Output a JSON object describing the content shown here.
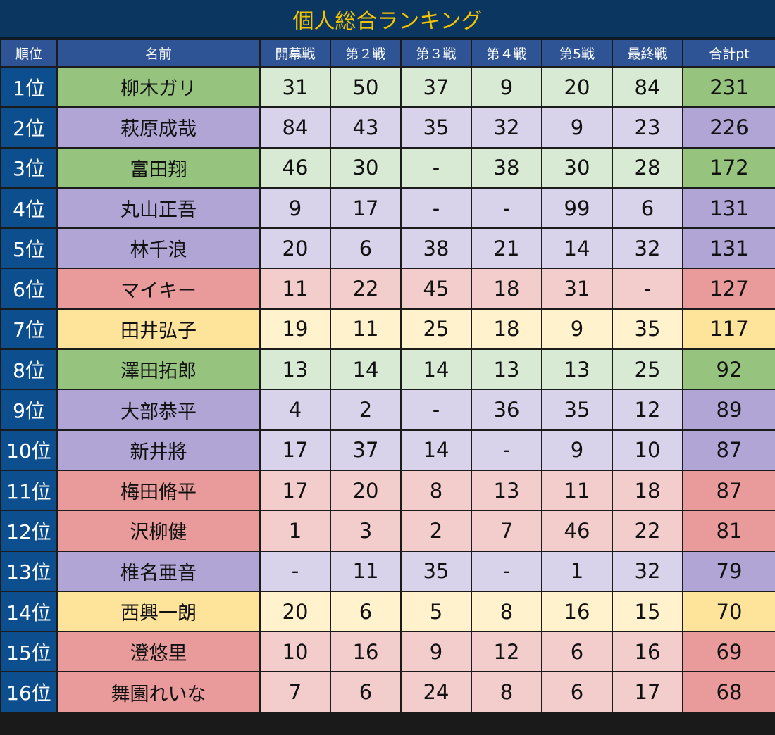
{
  "title": "個人総合ランキング",
  "headers": [
    "順位",
    "名前",
    "開幕戦",
    "第２戦",
    "第３戦",
    "第４戦",
    "第5戦",
    "最終戦",
    "合計pt"
  ],
  "colors": {
    "g": "#96c47e",
    "p": "#b1a5d6",
    "r": "#e99a9a",
    "y": "#fde49a",
    "rank": "#0c4e8e",
    "header": "#2f5496",
    "title_bg": "#0a365f",
    "title_text": "#f5c400"
  },
  "rows": [
    {
      "rank": "1位",
      "name": "柳木ガリ",
      "group": "g",
      "scores": [
        "31",
        "50",
        "37",
        "9",
        "20",
        "84"
      ],
      "total": "231"
    },
    {
      "rank": "2位",
      "name": "萩原成哉",
      "group": "p",
      "scores": [
        "84",
        "43",
        "35",
        "32",
        "9",
        "23"
      ],
      "total": "226"
    },
    {
      "rank": "3位",
      "name": "富田翔",
      "group": "g",
      "scores": [
        "46",
        "30",
        "-",
        "38",
        "30",
        "28"
      ],
      "total": "172"
    },
    {
      "rank": "4位",
      "name": "丸山正吾",
      "group": "p",
      "scores": [
        "9",
        "17",
        "-",
        "-",
        "99",
        "6"
      ],
      "total": "131"
    },
    {
      "rank": "5位",
      "name": "林千浪",
      "group": "p",
      "scores": [
        "20",
        "6",
        "38",
        "21",
        "14",
        "32"
      ],
      "total": "131"
    },
    {
      "rank": "6位",
      "name": "マイキー",
      "group": "r",
      "scores": [
        "11",
        "22",
        "45",
        "18",
        "31",
        "-"
      ],
      "total": "127"
    },
    {
      "rank": "7位",
      "name": "田井弘子",
      "group": "y",
      "scores": [
        "19",
        "11",
        "25",
        "18",
        "9",
        "35"
      ],
      "total": "117"
    },
    {
      "rank": "8位",
      "name": "澤田拓郎",
      "group": "g",
      "scores": [
        "13",
        "14",
        "14",
        "13",
        "13",
        "25"
      ],
      "total": "92"
    },
    {
      "rank": "9位",
      "name": "大部恭平",
      "group": "p",
      "scores": [
        "4",
        "2",
        "-",
        "36",
        "35",
        "12"
      ],
      "total": "89"
    },
    {
      "rank": "10位",
      "name": "新井將",
      "group": "p",
      "scores": [
        "17",
        "37",
        "14",
        "-",
        "9",
        "10"
      ],
      "total": "87"
    },
    {
      "rank": "11位",
      "name": "梅田脩平",
      "group": "r",
      "scores": [
        "17",
        "20",
        "8",
        "13",
        "11",
        "18"
      ],
      "total": "87"
    },
    {
      "rank": "12位",
      "name": "沢柳健",
      "group": "r",
      "scores": [
        "1",
        "3",
        "2",
        "7",
        "46",
        "22"
      ],
      "total": "81"
    },
    {
      "rank": "13位",
      "name": "椎名亜音",
      "group": "p",
      "scores": [
        "-",
        "11",
        "35",
        "-",
        "1",
        "32"
      ],
      "total": "79"
    },
    {
      "rank": "14位",
      "name": "西興一朗",
      "group": "y",
      "scores": [
        "20",
        "6",
        "5",
        "8",
        "16",
        "15"
      ],
      "total": "70"
    },
    {
      "rank": "15位",
      "name": "澄悠里",
      "group": "r",
      "scores": [
        "10",
        "16",
        "9",
        "12",
        "6",
        "16"
      ],
      "total": "69"
    },
    {
      "rank": "16位",
      "name": "舞園れいな",
      "group": "r",
      "scores": [
        "7",
        "6",
        "24",
        "8",
        "6",
        "17"
      ],
      "total": "68"
    }
  ]
}
